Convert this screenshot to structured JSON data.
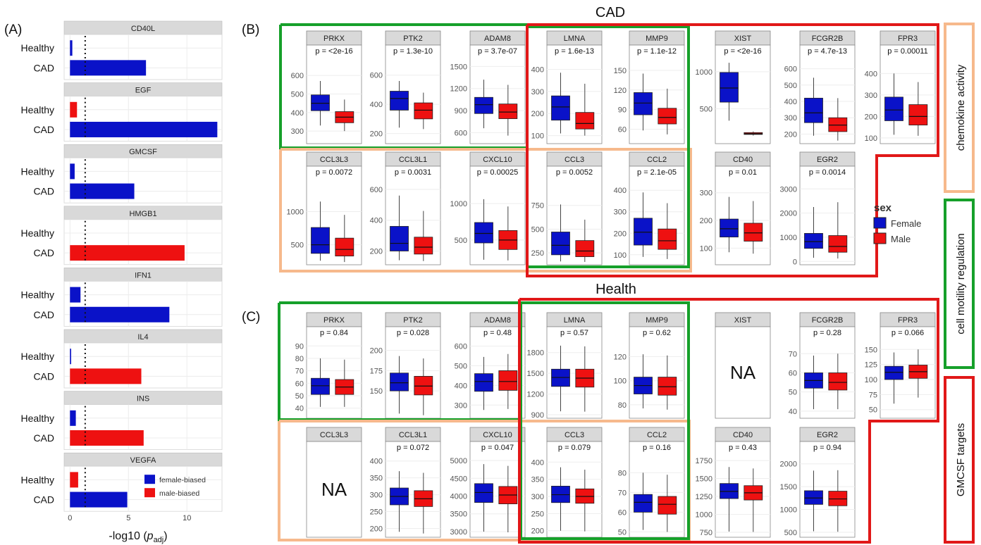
{
  "panel_labels": {
    "A": "(A)",
    "B": "(B)",
    "C": "(C)"
  },
  "section_titles": {
    "cad": "CAD",
    "health": "Health"
  },
  "side_labels": {
    "chemokine": "chemokine  activity",
    "motility": "cell motility regulation",
    "gmcsf": "GMCSF  targets"
  },
  "legend_sex": {
    "title": "sex",
    "female": "Female",
    "male": "Male"
  },
  "legend_bias": {
    "female": "female-biased",
    "male": "male-biased"
  },
  "colors": {
    "female": "#0a12c8",
    "male": "#ee1111",
    "green": "#16a02a",
    "red": "#e11818",
    "orange": "#f6b98c",
    "strip": "#d9d9d9"
  },
  "na_label": "NA",
  "chart_data": [
    {
      "type": "bar",
      "orientation": "horizontal",
      "xlabel": "-log10 (p_adj)",
      "xlabel_parts": {
        "base": "-log10 (",
        "italic": "p",
        "sub": "adj",
        "end": ")"
      },
      "xticks": [
        "0",
        "5",
        "10"
      ],
      "xlim": [
        -0.5,
        13
      ],
      "threshold": 1.3,
      "groups": [
        "Healthy",
        "CAD"
      ],
      "facets": [
        {
          "name": "CD40L",
          "healthy": 0.2,
          "healthy_bias": "female",
          "cad": 6.5,
          "cad_bias": "female"
        },
        {
          "name": "EGF",
          "healthy": 0.6,
          "healthy_bias": "male",
          "cad": 12.6,
          "cad_bias": "female"
        },
        {
          "name": "GMCSF",
          "healthy": 0.4,
          "healthy_bias": "female",
          "cad": 5.5,
          "cad_bias": "female"
        },
        {
          "name": "HMGB1",
          "healthy": 0,
          "healthy_bias": "none",
          "cad": 9.8,
          "cad_bias": "male"
        },
        {
          "name": "IFN1",
          "healthy": 0.9,
          "healthy_bias": "female",
          "cad": 8.5,
          "cad_bias": "female"
        },
        {
          "name": "IL4",
          "healthy": 0.1,
          "healthy_bias": "female",
          "cad": 6.1,
          "cad_bias": "male"
        },
        {
          "name": "INS",
          "healthy": 0.5,
          "healthy_bias": "female",
          "cad": 6.3,
          "cad_bias": "male"
        },
        {
          "name": "VEGFA",
          "healthy": 0.7,
          "healthy_bias": "male",
          "cad": 4.9,
          "cad_bias": "female"
        }
      ]
    },
    {
      "type": "boxplot",
      "section": "CAD",
      "series": [
        "Female",
        "Male"
      ],
      "panels": [
        {
          "gene": "PRKX",
          "p": "p = <2e-16",
          "ticks": [
            "300",
            "400",
            "500",
            "600"
          ],
          "ylim": [
            240,
            680
          ],
          "female": [
            330,
            410,
            450,
            495,
            570
          ],
          "male": [
            300,
            345,
            375,
            405,
            470
          ]
        },
        {
          "gene": "PTK2",
          "p": "p = 1.3e-10",
          "ticks": [
            "200",
            "400",
            "600"
          ],
          "ylim": [
            140,
            700
          ],
          "female": [
            240,
            360,
            440,
            490,
            560
          ],
          "male": [
            230,
            300,
            360,
            410,
            480
          ]
        },
        {
          "gene": "ADAM8",
          "p": "p = 3.7e-07",
          "ticks": [
            "600",
            "900",
            "1200",
            "1500"
          ],
          "ylim": [
            470,
            1580
          ],
          "female": [
            660,
            860,
            980,
            1080,
            1320
          ],
          "male": [
            560,
            790,
            880,
            990,
            1250
          ]
        },
        {
          "gene": "LMNA",
          "p": "p = 1.6e-13",
          "ticks": [
            "100",
            "200",
            "300",
            "400"
          ],
          "ylim": [
            70,
            440
          ],
          "female": [
            110,
            170,
            230,
            280,
            385
          ],
          "male": [
            100,
            130,
            155,
            205,
            335
          ]
        },
        {
          "gene": "MMP9",
          "p": "p = 1.1e-12",
          "ticks": [
            "60",
            "90",
            "120",
            "150"
          ],
          "ylim": [
            40,
            165
          ],
          "female": [
            58,
            82,
            100,
            116,
            145
          ],
          "male": [
            52,
            68,
            78,
            92,
            122
          ]
        },
        {
          "gene": "XIST",
          "p": "p = <2e-16",
          "ticks": [
            "500",
            "1000"
          ],
          "ylim": [
            50,
            1150
          ],
          "female": [
            340,
            590,
            780,
            990,
            1120
          ],
          "male": [
            140,
            155,
            165,
            180,
            195
          ]
        },
        {
          "gene": "FCGR2B",
          "p": "p = 4.7e-13",
          "ticks": [
            "200",
            "300",
            "400",
            "500",
            "600"
          ],
          "ylim": [
            150,
            650
          ],
          "female": [
            190,
            270,
            330,
            420,
            545
          ],
          "male": [
            160,
            215,
            255,
            300,
            420
          ]
        },
        {
          "gene": "FPR3",
          "p": "p = 0.00011",
          "ticks": [
            "100",
            "200",
            "300",
            "400"
          ],
          "ylim": [
            80,
            460
          ],
          "female": [
            115,
            180,
            230,
            290,
            400
          ],
          "male": [
            110,
            160,
            200,
            255,
            360
          ]
        },
        {
          "gene": "CCL3L3",
          "p": "p = 0.0072",
          "ticks": [
            "500",
            "1000"
          ],
          "ylim": [
            220,
            1450
          ],
          "female": [
            260,
            370,
            500,
            760,
            1150
          ],
          "male": [
            240,
            330,
            430,
            600,
            950
          ]
        },
        {
          "gene": "CCL3L1",
          "p": "p = 0.0031",
          "ticks": [
            "200",
            "400",
            "600"
          ],
          "ylim": [
            120,
            650
          ],
          "female": [
            140,
            200,
            250,
            360,
            560
          ],
          "male": [
            135,
            180,
            225,
            290,
            460
          ]
        },
        {
          "gene": "CXCL10",
          "p": "p = 0.00025",
          "ticks": [
            "500",
            "1000"
          ],
          "ylim": [
            180,
            1300
          ],
          "female": [
            230,
            460,
            590,
            740,
            1060
          ],
          "male": [
            220,
            370,
            500,
            630,
            960
          ]
        },
        {
          "gene": "CCL3",
          "p": "p = 0.0052",
          "ticks": [
            "250",
            "500",
            "750"
          ],
          "ylim": [
            140,
            1000
          ],
          "female": [
            160,
            230,
            330,
            470,
            760
          ],
          "male": [
            155,
            210,
            270,
            380,
            600
          ]
        },
        {
          "gene": "CCL2",
          "p": "p = 2.1e-05",
          "ticks": [
            "100",
            "200",
            "300",
            "400"
          ],
          "ylim": [
            60,
            440
          ],
          "female": [
            90,
            145,
            205,
            270,
            390
          ],
          "male": [
            80,
            125,
            165,
            220,
            340
          ]
        },
        {
          "gene": "CD40",
          "p": "p = 0.01",
          "ticks": [
            "100",
            "200",
            "300"
          ],
          "ylim": [
            45,
            340
          ],
          "female": [
            85,
            140,
            170,
            205,
            285
          ],
          "male": [
            80,
            125,
            155,
            190,
            270
          ]
        },
        {
          "gene": "EGR2",
          "p": "p = 0.0014",
          "ticks": [
            "0",
            "1000",
            "2000",
            "3000"
          ],
          "ylim": [
            -80,
            3300
          ],
          "female": [
            150,
            540,
            820,
            1160,
            2250
          ],
          "male": [
            120,
            380,
            620,
            1070,
            2450
          ]
        }
      ]
    },
    {
      "type": "boxplot",
      "section": "Health",
      "series": [
        "Female",
        "Male"
      ],
      "panels": [
        {
          "gene": "PRKX",
          "p": "p = 0.84",
          "ticks": [
            "40",
            "50",
            "60",
            "70",
            "80",
            "90"
          ],
          "ylim": [
            33,
            93
          ],
          "female": [
            41,
            51,
            58,
            64,
            80
          ],
          "male": [
            41,
            51,
            57,
            63,
            79
          ]
        },
        {
          "gene": "PTK2",
          "p": "p = 0.028",
          "ticks": [
            "150",
            "175",
            "200"
          ],
          "ylim": [
            118,
            210
          ],
          "female": [
            122,
            150,
            160,
            172,
            193
          ],
          "male": [
            120,
            145,
            156,
            168,
            190
          ]
        },
        {
          "gene": "ADAM8",
          "p": "p = 0.48",
          "ticks": [
            "300",
            "400",
            "500",
            "600"
          ],
          "ylim": [
            240,
            620
          ],
          "female": [
            275,
            370,
            420,
            460,
            545
          ],
          "male": [
            280,
            375,
            420,
            475,
            560
          ]
        },
        {
          "gene": "LMNA",
          "p": "p = 0.57",
          "ticks": [
            "900",
            "1200",
            "1500",
            "1800"
          ],
          "ylim": [
            870,
            1950
          ],
          "female": [
            950,
            1310,
            1440,
            1560,
            1900
          ],
          "male": [
            945,
            1300,
            1430,
            1560,
            1890
          ]
        },
        {
          "gene": "MMP9",
          "p": "p = 0.62",
          "ticks": [
            "80",
            "100",
            "120"
          ],
          "ylim": [
            70,
            132
          ],
          "female": [
            77,
            89,
            96,
            103,
            122
          ],
          "male": [
            76,
            88,
            95,
            103,
            121
          ]
        },
        {
          "gene": "FCGR2B",
          "p": "p = 0.28",
          "ticks": [
            "40",
            "50",
            "60",
            "70"
          ],
          "ylim": [
            37,
            76
          ],
          "female": [
            41,
            52,
            56,
            60,
            69
          ],
          "male": [
            41,
            51,
            55,
            60,
            70
          ]
        },
        {
          "gene": "FPR3",
          "p": "p = 0.066",
          "ticks": [
            "50",
            "75",
            "100",
            "125",
            "150"
          ],
          "ylim": [
            38,
            162
          ],
          "female": [
            60,
            100,
            112,
            122,
            145
          ],
          "male": [
            70,
            102,
            113,
            124,
            150
          ]
        },
        {
          "gene": "CCL3L1",
          "p": "p = 0.072",
          "ticks": [
            "200",
            "250",
            "300",
            "350",
            "400"
          ],
          "ylim": [
            178,
            412
          ],
          "female": [
            190,
            270,
            295,
            320,
            370
          ],
          "male": [
            185,
            265,
            288,
            312,
            365
          ]
        },
        {
          "gene": "CXCL10",
          "p": "p = 0.047",
          "ticks": [
            "3000",
            "3500",
            "4000",
            "4500",
            "5000"
          ],
          "ylim": [
            2880,
            5100
          ],
          "female": [
            3000,
            3820,
            4100,
            4350,
            4900
          ],
          "male": [
            2980,
            3780,
            4030,
            4270,
            4850
          ]
        },
        {
          "gene": "CCL3",
          "p": "p = 0.079",
          "ticks": [
            "200",
            "250",
            "300",
            "350",
            "400"
          ],
          "ylim": [
            185,
            415
          ],
          "female": [
            200,
            282,
            305,
            330,
            385
          ],
          "male": [
            198,
            280,
            300,
            322,
            378
          ]
        },
        {
          "gene": "CCL2",
          "p": "p = 0.16",
          "ticks": [
            "50",
            "60",
            "70",
            "80"
          ],
          "ylim": [
            48,
            88
          ],
          "female": [
            51,
            60,
            65,
            69,
            80
          ],
          "male": [
            50,
            59,
            64,
            68,
            79
          ]
        },
        {
          "gene": "CD40",
          "p": "p = 0.43",
          "ticks": [
            "750",
            "1000",
            "1250",
            "1500",
            "1750"
          ],
          "ylim": [
            700,
            1800
          ],
          "female": [
            760,
            1220,
            1320,
            1430,
            1660
          ],
          "male": [
            755,
            1200,
            1300,
            1400,
            1640
          ]
        },
        {
          "gene": "EGR2",
          "p": "p = 0.94",
          "ticks": [
            "500",
            "1000",
            "1500",
            "2000"
          ],
          "ylim": [
            420,
            2150
          ],
          "female": [
            520,
            1110,
            1250,
            1410,
            1850
          ],
          "male": [
            510,
            1080,
            1230,
            1400,
            1860
          ]
        }
      ]
    }
  ]
}
